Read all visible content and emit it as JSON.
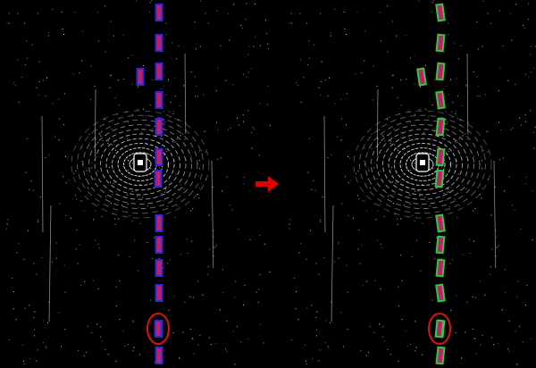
{
  "figure": {
    "panels": [
      {
        "id": "before",
        "box_colors": {
          "outline": "#2a2ad8",
          "fill": "#c0206a"
        },
        "box_count": 15,
        "highlight_circle": {
          "color": "#e01010"
        }
      },
      {
        "id": "after",
        "box_colors": {
          "outline": "#2ecc40",
          "fill": "#c0206a"
        },
        "box_count": 15,
        "highlight_circle": {
          "color": "#e01010"
        }
      }
    ],
    "arrow": {
      "icon": "right-arrow-icon",
      "color": "#e00000"
    },
    "background": "#000000",
    "point_color": "#ffffff"
  }
}
